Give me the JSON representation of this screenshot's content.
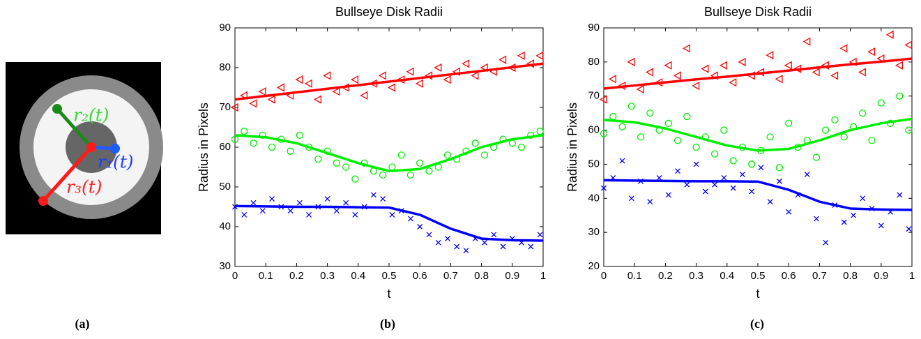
{
  "panel_labels": [
    "(a)",
    "(b)",
    "(c)"
  ],
  "image_labels": [
    "r₁(t)",
    "r₂(t)",
    "r₃(t)"
  ],
  "chart_data": [
    {
      "type": "scatter",
      "title": "Bullseye Disk Radii",
      "xlabel": "t",
      "ylabel": "Radius in Pixels",
      "xlim": [
        0,
        1
      ],
      "ylim": [
        30,
        90
      ],
      "xticks": [
        0,
        0.1,
        0.2,
        0.3,
        0.4,
        0.5,
        0.6,
        0.7,
        0.8,
        0.9,
        1
      ],
      "yticks": [
        30,
        40,
        50,
        60,
        70,
        80,
        90
      ],
      "series": [
        {
          "color": "#ff0000",
          "marker": "triangle-left",
          "x": [
            0,
            0.03,
            0.06,
            0.09,
            0.12,
            0.15,
            0.18,
            0.21,
            0.24,
            0.27,
            0.3,
            0.33,
            0.36,
            0.39,
            0.42,
            0.45,
            0.48,
            0.51,
            0.54,
            0.57,
            0.6,
            0.63,
            0.66,
            0.69,
            0.72,
            0.75,
            0.78,
            0.81,
            0.84,
            0.87,
            0.9,
            0.93,
            0.96,
            0.99
          ],
          "values": [
            70,
            73,
            71,
            74,
            72,
            75,
            73,
            77,
            76,
            72,
            78,
            74,
            75,
            77,
            73,
            76,
            78,
            75,
            77,
            79,
            76,
            78,
            80,
            77,
            79,
            81,
            78,
            80,
            79,
            82,
            80,
            83,
            81,
            83
          ]
        },
        {
          "color": "#00ee00",
          "marker": "circle",
          "x": [
            0,
            0.03,
            0.06,
            0.09,
            0.12,
            0.15,
            0.18,
            0.21,
            0.24,
            0.27,
            0.3,
            0.33,
            0.36,
            0.39,
            0.42,
            0.45,
            0.48,
            0.51,
            0.54,
            0.57,
            0.6,
            0.63,
            0.66,
            0.69,
            0.72,
            0.75,
            0.78,
            0.81,
            0.84,
            0.87,
            0.9,
            0.93,
            0.96,
            0.99
          ],
          "values": [
            62,
            64,
            61,
            63,
            60,
            62,
            59,
            63,
            60,
            57,
            59,
            56,
            55,
            52,
            56,
            54,
            53,
            55,
            58,
            53,
            56,
            54,
            55,
            58,
            57,
            59,
            61,
            58,
            60,
            62,
            61,
            60,
            63,
            64
          ]
        },
        {
          "color": "#0000ff",
          "marker": "x",
          "x": [
            0,
            0.03,
            0.06,
            0.09,
            0.12,
            0.15,
            0.18,
            0.21,
            0.24,
            0.27,
            0.3,
            0.33,
            0.36,
            0.39,
            0.42,
            0.45,
            0.48,
            0.51,
            0.54,
            0.57,
            0.6,
            0.63,
            0.66,
            0.69,
            0.72,
            0.75,
            0.78,
            0.81,
            0.84,
            0.87,
            0.9,
            0.93,
            0.96,
            0.99
          ],
          "values": [
            45,
            43,
            46,
            44,
            47,
            45,
            44,
            46,
            43,
            45,
            47,
            44,
            46,
            43,
            45,
            48,
            47,
            43,
            44,
            42,
            40,
            38,
            36,
            37,
            35,
            34,
            37,
            36,
            38,
            35,
            37,
            36,
            35,
            38
          ]
        },
        {
          "color": "#ff0000",
          "marker": "line",
          "x": [
            0,
            0.1,
            0.2,
            0.3,
            0.4,
            0.5,
            0.6,
            0.7,
            0.8,
            0.9,
            1
          ],
          "values": [
            72,
            72.9,
            73.8,
            74.7,
            75.6,
            76.5,
            77.4,
            78.3,
            79.2,
            80.1,
            81
          ]
        },
        {
          "color": "#00ee00",
          "marker": "line",
          "x": [
            0,
            0.1,
            0.2,
            0.3,
            0.4,
            0.5,
            0.6,
            0.7,
            0.8,
            0.9,
            1
          ],
          "values": [
            63,
            62.5,
            61,
            58.5,
            56,
            54,
            54.5,
            57,
            60,
            62,
            63
          ]
        },
        {
          "color": "#0000ff",
          "marker": "line",
          "x": [
            0,
            0.1,
            0.2,
            0.3,
            0.4,
            0.5,
            0.6,
            0.7,
            0.8,
            0.9,
            1
          ],
          "values": [
            45.2,
            45.1,
            45,
            45,
            44.9,
            44.8,
            43,
            39.5,
            37,
            36.6,
            36.5
          ]
        }
      ]
    },
    {
      "type": "scatter",
      "title": "Bullseye Disk Radii",
      "xlabel": "t",
      "ylabel": "Radius in Pixels",
      "xlim": [
        0,
        1
      ],
      "ylim": [
        20,
        90
      ],
      "xticks": [
        0,
        0.1,
        0.2,
        0.3,
        0.4,
        0.5,
        0.6,
        0.7,
        0.8,
        0.9,
        1
      ],
      "yticks": [
        20,
        30,
        40,
        50,
        60,
        70,
        80,
        90
      ],
      "series": [
        {
          "color": "#ff0000",
          "marker": "triangle-left",
          "x": [
            0,
            0.03,
            0.06,
            0.09,
            0.12,
            0.15,
            0.18,
            0.21,
            0.24,
            0.27,
            0.3,
            0.33,
            0.36,
            0.39,
            0.42,
            0.45,
            0.48,
            0.51,
            0.54,
            0.57,
            0.6,
            0.63,
            0.66,
            0.69,
            0.72,
            0.75,
            0.78,
            0.81,
            0.84,
            0.87,
            0.9,
            0.93,
            0.96,
            0.99
          ],
          "values": [
            69,
            75,
            73,
            80,
            72,
            77,
            74,
            79,
            76,
            84,
            73,
            78,
            76,
            79,
            74,
            80,
            76,
            77,
            82,
            75,
            79,
            78,
            86,
            77,
            79,
            76,
            84,
            80,
            77,
            83,
            81,
            88,
            79,
            85
          ]
        },
        {
          "color": "#00ee00",
          "marker": "circle",
          "x": [
            0,
            0.03,
            0.06,
            0.09,
            0.12,
            0.15,
            0.18,
            0.21,
            0.24,
            0.27,
            0.3,
            0.33,
            0.36,
            0.39,
            0.42,
            0.45,
            0.48,
            0.51,
            0.54,
            0.57,
            0.6,
            0.63,
            0.66,
            0.69,
            0.72,
            0.75,
            0.78,
            0.81,
            0.84,
            0.87,
            0.9,
            0.93,
            0.96,
            0.99
          ],
          "values": [
            59,
            64,
            61,
            67,
            58,
            65,
            60,
            62,
            57,
            64,
            55,
            58,
            53,
            60,
            51,
            55,
            50,
            54,
            58,
            49,
            62,
            55,
            57,
            52,
            60,
            63,
            58,
            61,
            65,
            57,
            68,
            62,
            70,
            60
          ]
        },
        {
          "color": "#0000ff",
          "marker": "x",
          "x": [
            0,
            0.03,
            0.06,
            0.09,
            0.12,
            0.15,
            0.18,
            0.21,
            0.24,
            0.27,
            0.3,
            0.33,
            0.36,
            0.39,
            0.42,
            0.45,
            0.48,
            0.51,
            0.54,
            0.57,
            0.6,
            0.63,
            0.66,
            0.69,
            0.72,
            0.75,
            0.78,
            0.81,
            0.84,
            0.87,
            0.9,
            0.93,
            0.96,
            0.99
          ],
          "values": [
            43,
            46,
            51,
            40,
            45,
            39,
            46,
            41,
            48,
            44,
            50,
            42,
            44,
            46,
            43,
            47,
            42,
            49,
            39,
            45,
            36,
            41,
            47,
            34,
            27,
            38,
            33,
            35,
            40,
            37,
            32,
            36,
            41,
            31
          ]
        },
        {
          "color": "#ff0000",
          "marker": "line",
          "x": [
            0,
            0.1,
            0.2,
            0.3,
            0.4,
            0.5,
            0.6,
            0.7,
            0.8,
            0.9,
            1
          ],
          "values": [
            72.2,
            73.1,
            74,
            74.9,
            75.7,
            76.6,
            77.5,
            78.4,
            79.3,
            80.1,
            81
          ]
        },
        {
          "color": "#00ee00",
          "marker": "line",
          "x": [
            0,
            0.1,
            0.2,
            0.3,
            0.4,
            0.5,
            0.6,
            0.7,
            0.8,
            0.9,
            1
          ],
          "values": [
            63,
            62.3,
            60.5,
            58,
            55.5,
            54,
            54.5,
            57,
            60,
            62,
            63.3
          ]
        },
        {
          "color": "#0000ff",
          "marker": "line",
          "x": [
            0,
            0.1,
            0.2,
            0.3,
            0.4,
            0.5,
            0.6,
            0.7,
            0.8,
            0.9,
            1
          ],
          "values": [
            45.3,
            45.2,
            45.1,
            45,
            45,
            44.9,
            42.5,
            39,
            37,
            36.7,
            36.6
          ]
        }
      ]
    }
  ]
}
